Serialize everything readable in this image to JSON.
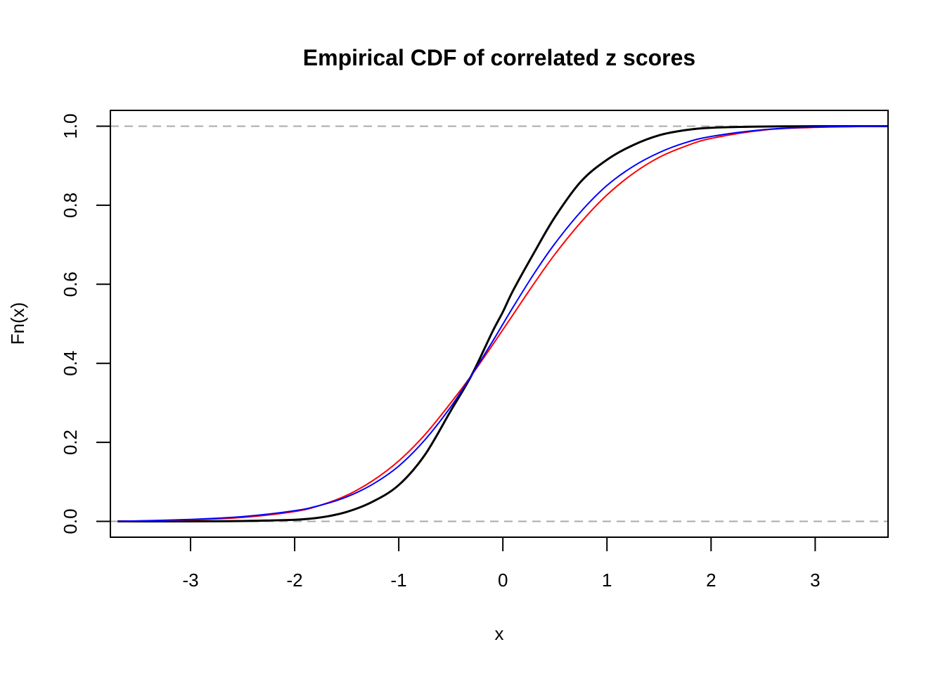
{
  "chart_data": {
    "type": "line",
    "title": "Empirical CDF of correlated z scores",
    "xlabel": "x",
    "ylabel": "Fn(x)",
    "xlim": [
      -3.77,
      3.7
    ],
    "ylim": [
      -0.04,
      1.04
    ],
    "x_ticks": [
      -3,
      -2,
      -1,
      0,
      1,
      2,
      3
    ],
    "x_tick_labels": [
      "-3",
      "-2",
      "-1",
      "0",
      "1",
      "2",
      "3"
    ],
    "y_ticks": [
      0.0,
      0.2,
      0.4,
      0.6,
      0.8,
      1.0
    ],
    "y_tick_labels": [
      "0.0",
      "0.2",
      "0.4",
      "0.6",
      "0.8",
      "1.0"
    ],
    "reference_lines": {
      "y": [
        0.0,
        1.0
      ],
      "color": "#aaaaaa",
      "style": "dashed"
    },
    "grid": false,
    "legend": "none",
    "series": [
      {
        "color": "#000000",
        "x": [
          -3.7,
          -3.0,
          -2.5,
          -2.0,
          -1.75,
          -1.5,
          -1.25,
          -1.0,
          -0.75,
          -0.5,
          -0.3,
          -0.1,
          0.0,
          0.1,
          0.3,
          0.5,
          0.75,
          1.0,
          1.25,
          1.5,
          1.75,
          2.0,
          2.5,
          3.0,
          3.7
        ],
        "y": [
          0.0,
          0.0,
          0.001,
          0.004,
          0.01,
          0.024,
          0.05,
          0.092,
          0.168,
          0.28,
          0.37,
          0.48,
          0.53,
          0.585,
          0.68,
          0.77,
          0.86,
          0.915,
          0.952,
          0.977,
          0.99,
          0.996,
          0.999,
          1.0,
          1.0
        ]
      },
      {
        "color": "#ff0000",
        "x": [
          -3.7,
          -3.0,
          -2.5,
          -2.0,
          -1.75,
          -1.5,
          -1.25,
          -1.0,
          -0.75,
          -0.5,
          -0.3,
          -0.1,
          0.0,
          0.1,
          0.3,
          0.5,
          0.75,
          1.0,
          1.25,
          1.5,
          1.75,
          2.0,
          2.5,
          3.0,
          3.7
        ],
        "y": [
          0.0,
          0.004,
          0.01,
          0.025,
          0.041,
          0.066,
          0.103,
          0.153,
          0.219,
          0.3,
          0.37,
          0.446,
          0.485,
          0.524,
          0.602,
          0.676,
          0.757,
          0.826,
          0.88,
          0.921,
          0.949,
          0.969,
          0.99,
          0.997,
          1.0
        ]
      },
      {
        "color": "#0000ff",
        "x": [
          -3.7,
          -3.0,
          -2.5,
          -2.0,
          -1.75,
          -1.5,
          -1.25,
          -1.0,
          -0.75,
          -0.5,
          -0.3,
          -0.1,
          0.0,
          0.1,
          0.3,
          0.5,
          0.75,
          1.0,
          1.25,
          1.5,
          1.75,
          2.0,
          2.5,
          3.0,
          3.7
        ],
        "y": [
          0.0,
          0.005,
          0.012,
          0.027,
          0.041,
          0.062,
          0.094,
          0.14,
          0.206,
          0.29,
          0.37,
          0.455,
          0.499,
          0.543,
          0.627,
          0.703,
          0.784,
          0.85,
          0.898,
          0.933,
          0.958,
          0.974,
          0.991,
          0.998,
          1.0
        ]
      }
    ]
  }
}
